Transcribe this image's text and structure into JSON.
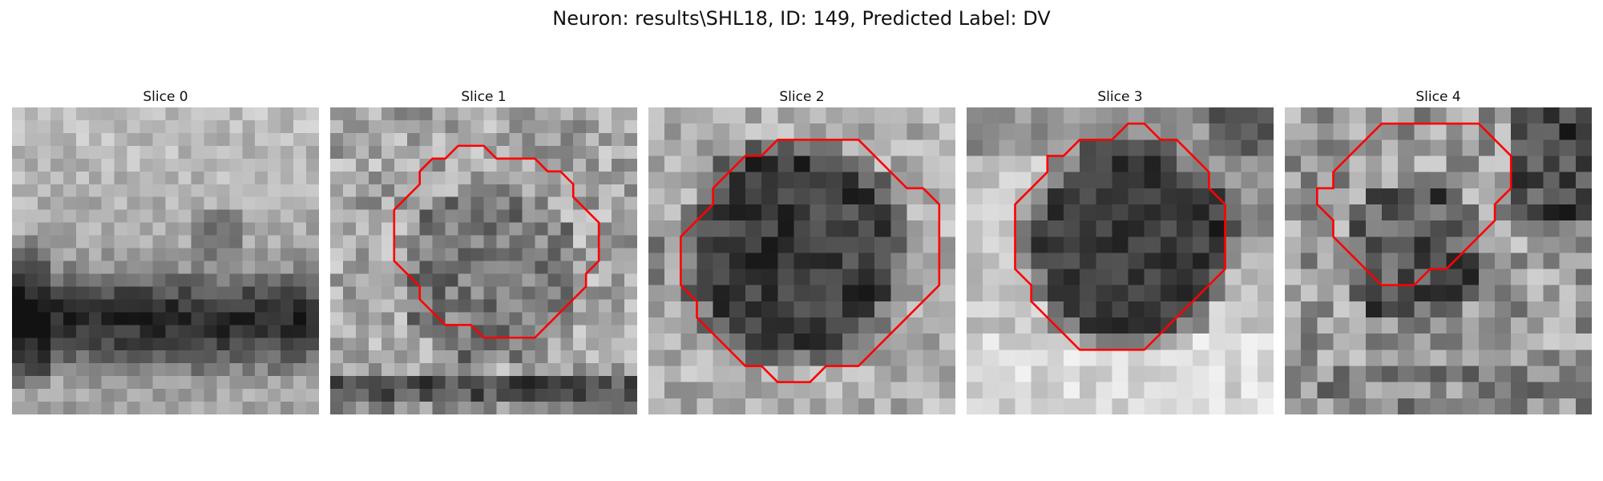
{
  "figure": {
    "title": "Neuron: results\\SHL18, ID: 149, Predicted Label: DV"
  },
  "colors": {
    "contour": "#ff0000",
    "background": "#ffffff"
  },
  "slices": [
    {
      "title": "Slice 0",
      "has_contour": false,
      "contour": []
    },
    {
      "title": "Slice 1",
      "has_contour": true,
      "contour": [
        [
          13,
          4
        ],
        [
          16,
          4
        ],
        [
          17,
          5
        ],
        [
          18,
          5
        ],
        [
          19,
          6
        ],
        [
          19,
          7
        ],
        [
          20,
          8
        ],
        [
          21,
          9
        ],
        [
          21,
          12
        ],
        [
          20,
          13
        ],
        [
          20,
          14
        ],
        [
          19,
          15
        ],
        [
          18,
          16
        ],
        [
          17,
          17
        ],
        [
          16,
          18
        ],
        [
          12,
          18
        ],
        [
          11,
          17
        ],
        [
          9,
          17
        ],
        [
          8,
          16
        ],
        [
          7,
          15
        ],
        [
          7,
          14
        ],
        [
          6,
          13
        ],
        [
          5,
          12
        ],
        [
          5,
          8
        ],
        [
          6,
          7
        ],
        [
          7,
          6
        ],
        [
          7,
          5
        ],
        [
          8,
          4
        ],
        [
          9,
          4
        ],
        [
          10,
          3
        ],
        [
          12,
          3
        ]
      ]
    },
    {
      "title": "Slice 2",
      "has_contour": true,
      "contour": [
        [
          10,
          2
        ],
        [
          13,
          2
        ],
        [
          14,
          3
        ],
        [
          15,
          4
        ],
        [
          16,
          5
        ],
        [
          17,
          5
        ],
        [
          18,
          6
        ],
        [
          18,
          11
        ],
        [
          17,
          12
        ],
        [
          16,
          13
        ],
        [
          15,
          14
        ],
        [
          14,
          15
        ],
        [
          13,
          16
        ],
        [
          11,
          16
        ],
        [
          10,
          17
        ],
        [
          8,
          17
        ],
        [
          7,
          16
        ],
        [
          6,
          16
        ],
        [
          5,
          15
        ],
        [
          4,
          14
        ],
        [
          3,
          13
        ],
        [
          3,
          12
        ],
        [
          2,
          11
        ],
        [
          2,
          8
        ],
        [
          3,
          7
        ],
        [
          4,
          6
        ],
        [
          4,
          5
        ],
        [
          5,
          4
        ],
        [
          6,
          3
        ],
        [
          7,
          3
        ],
        [
          8,
          2
        ]
      ]
    },
    {
      "title": "Slice 3",
      "has_contour": true,
      "contour": [
        [
          10,
          1
        ],
        [
          11,
          1
        ],
        [
          12,
          2
        ],
        [
          13,
          2
        ],
        [
          14,
          3
        ],
        [
          15,
          4
        ],
        [
          15,
          5
        ],
        [
          16,
          6
        ],
        [
          16,
          10
        ],
        [
          15,
          11
        ],
        [
          14,
          12
        ],
        [
          13,
          13
        ],
        [
          12,
          14
        ],
        [
          11,
          15
        ],
        [
          7,
          15
        ],
        [
          6,
          14
        ],
        [
          5,
          13
        ],
        [
          4,
          12
        ],
        [
          4,
          11
        ],
        [
          3,
          10
        ],
        [
          3,
          6
        ],
        [
          4,
          5
        ],
        [
          5,
          4
        ],
        [
          5,
          3
        ],
        [
          6,
          3
        ],
        [
          7,
          2
        ],
        [
          9,
          2
        ]
      ]
    },
    {
      "title": "Slice 4",
      "has_contour": true,
      "contour": [
        [
          10,
          1
        ],
        [
          12,
          1
        ],
        [
          13,
          2
        ],
        [
          14,
          3
        ],
        [
          14,
          5
        ],
        [
          13,
          6
        ],
        [
          13,
          7
        ],
        [
          12,
          8
        ],
        [
          11,
          9
        ],
        [
          10,
          10
        ],
        [
          9,
          10
        ],
        [
          8,
          11
        ],
        [
          6,
          11
        ],
        [
          5,
          10
        ],
        [
          4,
          9
        ],
        [
          3,
          8
        ],
        [
          3,
          7
        ],
        [
          2,
          6
        ],
        [
          2,
          5
        ],
        [
          3,
          5
        ],
        [
          3,
          4
        ],
        [
          4,
          3
        ],
        [
          5,
          2
        ],
        [
          6,
          1
        ],
        [
          7,
          1
        ]
      ]
    }
  ]
}
